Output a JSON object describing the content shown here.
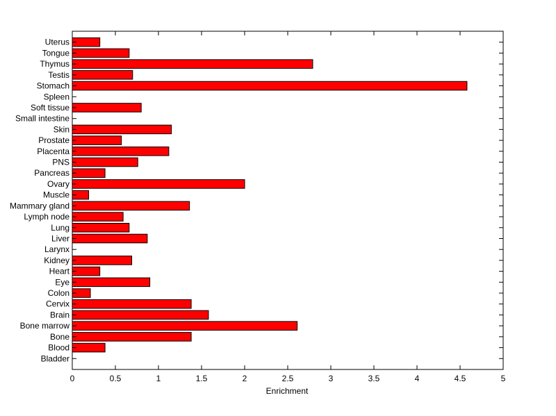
{
  "chart_data": {
    "type": "bar",
    "orientation": "horizontal",
    "title": "",
    "xlabel": "Enrichment",
    "ylabel": "",
    "xlim": [
      0,
      5
    ],
    "x_ticks": [
      0,
      0.5,
      1,
      1.5,
      2,
      2.5,
      3,
      3.5,
      4,
      4.5,
      5
    ],
    "x_tick_labels": [
      "0",
      "0.5",
      "1",
      "1.5",
      "2",
      "2.5",
      "3",
      "3.5",
      "4",
      "4.5",
      "5"
    ],
    "grid": false,
    "legend": "none",
    "bar_color": "#ff0000",
    "bar_edge_color": "#000000",
    "categories": [
      "Bladder",
      "Blood",
      "Bone",
      "Bone marrow",
      "Brain",
      "Cervix",
      "Colon",
      "Eye",
      "Heart",
      "Kidney",
      "Larynx",
      "Liver",
      "Lung",
      "Lymph node",
      "Mammary gland",
      "Muscle",
      "Ovary",
      "Pancreas",
      "PNS",
      "Placenta",
      "Prostate",
      "Skin",
      "Small intestine",
      "Soft tissue",
      "Spleen",
      "Stomach",
      "Testis",
      "Thymus",
      "Tongue",
      "Uterus"
    ],
    "values": [
      0,
      0.38,
      1.38,
      2.61,
      1.58,
      1.38,
      0.21,
      0.9,
      0.32,
      0.69,
      0,
      0.87,
      0.66,
      0.59,
      1.36,
      0.19,
      2.0,
      0.38,
      0.76,
      1.12,
      0.57,
      1.15,
      0,
      0.8,
      0,
      4.58,
      0.7,
      2.79,
      0.66,
      0.32
    ]
  }
}
